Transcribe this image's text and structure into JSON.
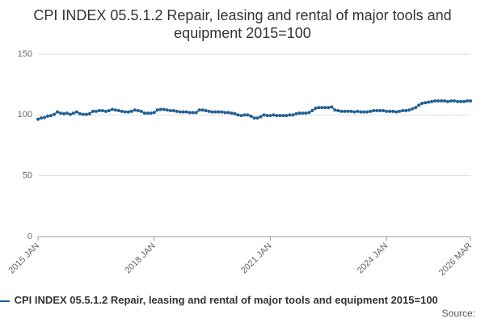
{
  "chart_data": {
    "type": "line",
    "title": "CPI INDEX 05.5.1.2 Repair, leasing and rental of major tools and equipment 2015=100",
    "categories": [
      "2015 JAN",
      null,
      null,
      null,
      null,
      null,
      null,
      null,
      null,
      null,
      null,
      null,
      null,
      null,
      null,
      null,
      null,
      null,
      null,
      null,
      null,
      null,
      null,
      null,
      null,
      null,
      null,
      null,
      null,
      null,
      null,
      null,
      null,
      null,
      null,
      null,
      "2018 JAN",
      null,
      null,
      null,
      null,
      null,
      null,
      null,
      null,
      null,
      null,
      null,
      null,
      null,
      null,
      null,
      null,
      null,
      null,
      null,
      null,
      null,
      null,
      null,
      null,
      null,
      null,
      null,
      null,
      null,
      null,
      null,
      null,
      null,
      null,
      null,
      "2021 JAN",
      null,
      null,
      null,
      null,
      null,
      null,
      null,
      null,
      null,
      null,
      null,
      null,
      null,
      null,
      null,
      null,
      null,
      null,
      null,
      null,
      null,
      null,
      null,
      null,
      null,
      null,
      null,
      null,
      null,
      null,
      null,
      null,
      null,
      null,
      null,
      "2024 JAN",
      null,
      null,
      null,
      null,
      null,
      null,
      null,
      null,
      null,
      null,
      null,
      null,
      null,
      null,
      null,
      null,
      null,
      null,
      null,
      null,
      null,
      null,
      null,
      null,
      null,
      "2026 MAR"
    ],
    "series": [
      {
        "name": "CPI INDEX 05.5.1.2 Repair, leasing and rental of major tools and equipment 2015=100",
        "color": "#206095",
        "values": [
          96.5,
          97.5,
          97.8,
          99,
          99.5,
          100.5,
          102.5,
          101.5,
          101,
          101.5,
          100.5,
          101.5,
          102.5,
          101,
          100.5,
          100.5,
          101,
          103,
          103,
          103.5,
          103.5,
          103,
          103.5,
          104.5,
          104,
          103.5,
          103,
          102.5,
          102.5,
          103,
          104,
          103.5,
          103,
          101.5,
          101.5,
          101.5,
          102,
          104,
          104.5,
          104.5,
          104,
          103.5,
          103.5,
          103,
          102.5,
          102.5,
          102.5,
          102,
          102,
          102,
          104,
          104,
          103.5,
          103,
          102.5,
          102.5,
          102.5,
          102.5,
          102,
          102,
          101.5,
          101,
          100,
          99.5,
          100,
          100,
          99,
          97.5,
          97.5,
          98.5,
          100,
          99.5,
          99.5,
          100,
          99.5,
          99.5,
          99.5,
          99.5,
          100,
          100,
          101,
          101.5,
          101.5,
          101.5,
          102,
          103.5,
          105.5,
          106,
          106,
          106,
          106,
          106.5,
          104,
          103.5,
          103,
          103,
          103,
          103,
          102.5,
          103,
          102.5,
          102.5,
          102.5,
          103,
          103.5,
          103.5,
          103.5,
          103.5,
          103,
          103,
          103,
          102.5,
          103,
          103.5,
          103.5,
          104,
          105,
          106,
          108,
          109.5,
          110,
          110.5,
          111,
          111.5,
          111.5,
          111.5,
          111.5,
          111,
          111.5,
          111.5,
          111,
          111,
          111,
          111.5,
          111.5
        ]
      }
    ],
    "ylim": [
      0,
      150
    ],
    "yticks": [
      0,
      50,
      100,
      150
    ],
    "grid": true,
    "source": "Source:"
  }
}
